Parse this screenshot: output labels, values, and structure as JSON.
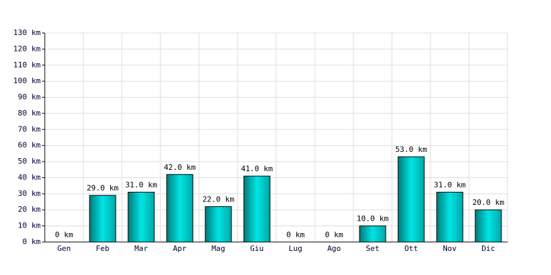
{
  "chart_data": {
    "type": "bar",
    "categories": [
      "Gen",
      "Feb",
      "Mar",
      "Apr",
      "Mag",
      "Giu",
      "Lug",
      "Ago",
      "Set",
      "Ott",
      "Nov",
      "Dic"
    ],
    "values": [
      0,
      29,
      31,
      42,
      22,
      41,
      0,
      0,
      10,
      53,
      31,
      20
    ],
    "value_labels": [
      "0 km",
      "29.0 km",
      "31.0 km",
      "42.0 km",
      "22.0 km",
      "41.0 km",
      "0 km",
      "0 km",
      "10.0 km",
      "53.0 km",
      "31.0 km",
      "20.0 km"
    ],
    "color": "#00e5e5",
    "ylim": [
      0,
      130
    ],
    "yticks": [
      {
        "value": 0,
        "label": "0 km"
      },
      {
        "value": 10,
        "label": "10 km"
      },
      {
        "value": 20,
        "label": "20 km"
      },
      {
        "value": 30,
        "label": "30 km"
      },
      {
        "value": 40,
        "label": "40 km"
      },
      {
        "value": 50,
        "label": "50 km"
      },
      {
        "value": 60,
        "label": "60 km"
      },
      {
        "value": 70,
        "label": "70 km"
      },
      {
        "value": 80,
        "label": "80 km"
      },
      {
        "value": 90,
        "label": "90 km"
      },
      {
        "value": 100,
        "label": "100 km"
      },
      {
        "value": 110,
        "label": "110 km"
      },
      {
        "value": 120,
        "label": "120 km"
      },
      {
        "value": 130,
        "label": "130 km"
      }
    ],
    "grid": true
  }
}
